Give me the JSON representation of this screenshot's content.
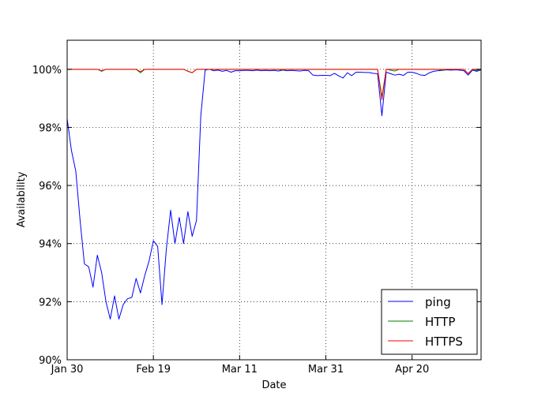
{
  "chart_data": {
    "type": "line",
    "title": "",
    "xlabel": "Date",
    "ylabel": "Availability",
    "xlim": [
      "2014-01-30",
      "2014-05-06"
    ],
    "ylim": [
      90,
      101
    ],
    "yticks": [
      90,
      92,
      94,
      96,
      98,
      100
    ],
    "ytick_labels": [
      "90%",
      "92%",
      "94%",
      "96%",
      "98%",
      "100%"
    ],
    "xticks": [
      "2014-01-30",
      "2014-02-19",
      "2014-03-11",
      "2014-03-31",
      "2014-04-20"
    ],
    "xtick_labels": [
      "Jan 30",
      "Feb 19",
      "Mar 11",
      "Mar 31",
      "Apr 20"
    ],
    "grid": true,
    "legend_position": "lower-right",
    "series": [
      {
        "name": "ping",
        "color": "#0000ff",
        "points": [
          [
            "2014-01-30",
            98.3
          ],
          [
            "2014-01-31",
            97.2
          ],
          [
            "2014-02-01",
            96.5
          ],
          [
            "2014-02-02",
            94.8
          ],
          [
            "2014-02-03",
            93.3
          ],
          [
            "2014-02-04",
            93.2
          ],
          [
            "2014-02-05",
            92.5
          ],
          [
            "2014-02-06",
            93.6
          ],
          [
            "2014-02-07",
            93.0
          ],
          [
            "2014-02-08",
            92.0
          ],
          [
            "2014-02-09",
            91.4
          ],
          [
            "2014-02-10",
            92.2
          ],
          [
            "2014-02-11",
            91.4
          ],
          [
            "2014-02-12",
            91.9
          ],
          [
            "2014-02-13",
            92.1
          ],
          [
            "2014-02-14",
            92.15
          ],
          [
            "2014-02-15",
            92.8
          ],
          [
            "2014-02-16",
            92.3
          ],
          [
            "2014-02-17",
            92.9
          ],
          [
            "2014-02-18",
            93.4
          ],
          [
            "2014-02-19",
            94.1
          ],
          [
            "2014-02-20",
            93.9
          ],
          [
            "2014-02-21",
            91.9
          ],
          [
            "2014-02-22",
            93.8
          ],
          [
            "2014-02-23",
            95.15
          ],
          [
            "2014-02-24",
            94.0
          ],
          [
            "2014-02-25",
            94.9
          ],
          [
            "2014-02-26",
            94.0
          ],
          [
            "2014-02-27",
            95.1
          ],
          [
            "2014-02-28",
            94.25
          ],
          [
            "2014-03-01",
            94.8
          ],
          [
            "2014-03-02",
            98.4
          ],
          [
            "2014-03-03",
            99.97
          ],
          [
            "2014-03-04",
            100.0
          ],
          [
            "2014-03-05",
            99.95
          ],
          [
            "2014-03-06",
            99.97
          ],
          [
            "2014-03-07",
            99.93
          ],
          [
            "2014-03-08",
            99.96
          ],
          [
            "2014-03-09",
            99.9
          ],
          [
            "2014-03-10",
            99.95
          ],
          [
            "2014-03-11",
            99.95
          ],
          [
            "2014-03-12",
            99.96
          ],
          [
            "2014-03-13",
            99.96
          ],
          [
            "2014-03-14",
            99.95
          ],
          [
            "2014-03-15",
            99.97
          ],
          [
            "2014-03-16",
            99.95
          ],
          [
            "2014-03-17",
            99.96
          ],
          [
            "2014-03-18",
            99.95
          ],
          [
            "2014-03-19",
            99.96
          ],
          [
            "2014-03-20",
            99.94
          ],
          [
            "2014-03-21",
            99.97
          ],
          [
            "2014-03-22",
            99.95
          ],
          [
            "2014-03-23",
            99.96
          ],
          [
            "2014-03-24",
            99.95
          ],
          [
            "2014-03-25",
            99.94
          ],
          [
            "2014-03-26",
            99.96
          ],
          [
            "2014-03-27",
            99.95
          ],
          [
            "2014-03-28",
            99.8
          ],
          [
            "2014-03-29",
            99.78
          ],
          [
            "2014-03-30",
            99.79
          ],
          [
            "2014-03-31",
            99.79
          ],
          [
            "2014-04-01",
            99.78
          ],
          [
            "2014-04-02",
            99.86
          ],
          [
            "2014-04-03",
            99.77
          ],
          [
            "2014-04-04",
            99.7
          ],
          [
            "2014-04-05",
            99.88
          ],
          [
            "2014-04-06",
            99.78
          ],
          [
            "2014-04-07",
            99.9
          ],
          [
            "2014-04-08",
            99.9
          ],
          [
            "2014-04-09",
            99.89
          ],
          [
            "2014-04-10",
            99.89
          ],
          [
            "2014-04-11",
            99.86
          ],
          [
            "2014-04-12",
            99.85
          ],
          [
            "2014-04-13",
            98.4
          ],
          [
            "2014-04-14",
            99.9
          ],
          [
            "2014-04-15",
            99.85
          ],
          [
            "2014-04-16",
            99.8
          ],
          [
            "2014-04-17",
            99.83
          ],
          [
            "2014-04-18",
            99.79
          ],
          [
            "2014-04-19",
            99.9
          ],
          [
            "2014-04-20",
            99.9
          ],
          [
            "2014-04-21",
            99.86
          ],
          [
            "2014-04-22",
            99.8
          ],
          [
            "2014-04-23",
            99.79
          ],
          [
            "2014-04-24",
            99.88
          ],
          [
            "2014-04-25",
            99.93
          ],
          [
            "2014-04-26",
            99.95
          ],
          [
            "2014-04-27",
            99.96
          ],
          [
            "2014-04-28",
            99.98
          ],
          [
            "2014-04-29",
            99.97
          ],
          [
            "2014-04-30",
            99.98
          ],
          [
            "2014-05-01",
            99.97
          ],
          [
            "2014-05-02",
            99.95
          ],
          [
            "2014-05-03",
            99.8
          ],
          [
            "2014-05-04",
            99.97
          ],
          [
            "2014-05-05",
            99.93
          ],
          [
            "2014-05-06",
            99.98
          ]
        ]
      },
      {
        "name": "HTTP",
        "color": "#008000",
        "points": [
          [
            "2014-01-30",
            100.0
          ],
          [
            "2014-02-06",
            100.0
          ],
          [
            "2014-02-07",
            99.93
          ],
          [
            "2014-02-08",
            100.0
          ],
          [
            "2014-02-15",
            100.0
          ],
          [
            "2014-02-16",
            99.88
          ],
          [
            "2014-02-17",
            100.0
          ],
          [
            "2014-02-26",
            100.0
          ],
          [
            "2014-02-27",
            99.93
          ],
          [
            "2014-02-28",
            99.88
          ],
          [
            "2014-03-01",
            100.0
          ],
          [
            "2014-03-20",
            100.0
          ],
          [
            "2014-03-21",
            99.96
          ],
          [
            "2014-03-22",
            100.0
          ],
          [
            "2014-04-12",
            100.0
          ],
          [
            "2014-04-13",
            99.05
          ],
          [
            "2014-04-14",
            100.0
          ],
          [
            "2014-04-16",
            99.94
          ],
          [
            "2014-04-17",
            100.0
          ],
          [
            "2014-04-26",
            100.0
          ],
          [
            "2014-04-27",
            99.96
          ],
          [
            "2014-04-28",
            100.0
          ],
          [
            "2014-05-02",
            100.0
          ],
          [
            "2014-05-03",
            99.85
          ],
          [
            "2014-05-04",
            100.0
          ],
          [
            "2014-05-05",
            99.96
          ],
          [
            "2014-05-06",
            100.0
          ]
        ]
      },
      {
        "name": "HTTPS",
        "color": "#ff0000",
        "points": [
          [
            "2014-01-30",
            100.0
          ],
          [
            "2014-02-06",
            100.0
          ],
          [
            "2014-02-07",
            99.95
          ],
          [
            "2014-02-08",
            100.0
          ],
          [
            "2014-02-15",
            100.0
          ],
          [
            "2014-02-16",
            99.92
          ],
          [
            "2014-02-17",
            100.0
          ],
          [
            "2014-02-26",
            100.0
          ],
          [
            "2014-02-27",
            99.94
          ],
          [
            "2014-02-28",
            99.88
          ],
          [
            "2014-03-01",
            100.0
          ],
          [
            "2014-04-12",
            100.0
          ],
          [
            "2014-04-13",
            98.95
          ],
          [
            "2014-04-14",
            100.0
          ],
          [
            "2014-05-02",
            100.0
          ],
          [
            "2014-05-03",
            99.85
          ],
          [
            "2014-05-04",
            100.0
          ],
          [
            "2014-05-06",
            100.0
          ]
        ]
      }
    ]
  }
}
